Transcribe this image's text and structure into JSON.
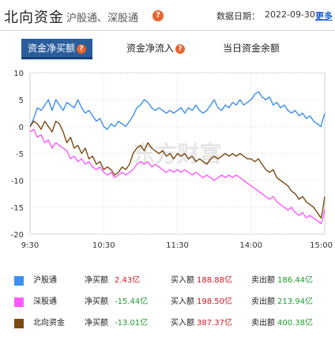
{
  "header": {
    "title": "北向资金",
    "subtitle": "沪股通、深股通",
    "help_glyph": "?",
    "date_label": "数据日期：",
    "date_value": "2022-09-30",
    "more_label": "更多"
  },
  "tabs": [
    {
      "label": "资金净买额",
      "active": true,
      "has_help": true
    },
    {
      "label": "资金净流入",
      "active": false,
      "has_help": true
    },
    {
      "label": "当日资金余额",
      "active": false,
      "has_help": false
    }
  ],
  "chart_data": {
    "type": "line",
    "title": "",
    "xlabel": "",
    "ylabel": "",
    "ylim": [
      -20,
      10
    ],
    "yticks": [
      "10",
      "5",
      "0",
      "-5",
      "-10",
      "-15",
      "-20"
    ],
    "xticks": [
      "9:30",
      "10:30",
      "11:30",
      "14:00",
      "15:00"
    ],
    "xtick_minutes": [
      0,
      60,
      120,
      180,
      240
    ],
    "watermark": "东方财富",
    "colors": {
      "沪股通": "#3d8ff0",
      "深股通": "#ff5aff",
      "北向资金": "#7a4a12"
    },
    "series": [
      {
        "name": "沪股通",
        "color": "#3d8ff0",
        "points": [
          [
            0,
            0
          ],
          [
            3,
            1.5
          ],
          [
            6,
            3.5
          ],
          [
            9,
            3
          ],
          [
            12,
            4
          ],
          [
            15,
            5
          ],
          [
            18,
            3
          ],
          [
            21,
            5
          ],
          [
            24,
            4
          ],
          [
            27,
            3
          ],
          [
            30,
            4.5
          ],
          [
            33,
            4
          ],
          [
            36,
            3.5
          ],
          [
            39,
            5
          ],
          [
            42,
            3.5
          ],
          [
            45,
            2.5
          ],
          [
            48,
            3
          ],
          [
            51,
            2
          ],
          [
            54,
            1
          ],
          [
            57,
            1.5
          ],
          [
            60,
            0
          ],
          [
            63,
            -0.5
          ],
          [
            66,
            0.5
          ],
          [
            69,
            0
          ],
          [
            72,
            1
          ],
          [
            75,
            0.5
          ],
          [
            78,
            0
          ],
          [
            81,
            1
          ],
          [
            84,
            2
          ],
          [
            87,
            3.5
          ],
          [
            90,
            4
          ],
          [
            93,
            5
          ],
          [
            96,
            4.5
          ],
          [
            99,
            3.5
          ],
          [
            102,
            3
          ],
          [
            105,
            3.5
          ],
          [
            108,
            3
          ],
          [
            111,
            2.5
          ],
          [
            114,
            3
          ],
          [
            117,
            2.5
          ],
          [
            120,
            3
          ],
          [
            123,
            3.5
          ],
          [
            126,
            2.5
          ],
          [
            129,
            3.5
          ],
          [
            132,
            3
          ],
          [
            135,
            4
          ],
          [
            138,
            3
          ],
          [
            141,
            2.5
          ],
          [
            144,
            3
          ],
          [
            147,
            4
          ],
          [
            150,
            5
          ],
          [
            153,
            3.5
          ],
          [
            156,
            3
          ],
          [
            159,
            4
          ],
          [
            162,
            3.5
          ],
          [
            165,
            4.5
          ],
          [
            168,
            4
          ],
          [
            171,
            5
          ],
          [
            174,
            4
          ],
          [
            177,
            4.5
          ],
          [
            180,
            5
          ],
          [
            183,
            6
          ],
          [
            186,
            6.5
          ],
          [
            189,
            5.5
          ],
          [
            192,
            5
          ],
          [
            195,
            5.5
          ],
          [
            198,
            4
          ],
          [
            201,
            4.5
          ],
          [
            204,
            3.5
          ],
          [
            207,
            4
          ],
          [
            210,
            3
          ],
          [
            213,
            2.5
          ],
          [
            216,
            3
          ],
          [
            219,
            2
          ],
          [
            222,
            2.5
          ],
          [
            225,
            1.5
          ],
          [
            228,
            2
          ],
          [
            231,
            1
          ],
          [
            234,
            0.5
          ],
          [
            237,
            0
          ],
          [
            238,
            1
          ],
          [
            240,
            2.43
          ]
        ]
      },
      {
        "name": "深股通",
        "color": "#ff5aff",
        "points": [
          [
            0,
            -1
          ],
          [
            3,
            -0.5
          ],
          [
            6,
            -2
          ],
          [
            9,
            -1.5
          ],
          [
            12,
            -3
          ],
          [
            15,
            -2.5
          ],
          [
            18,
            -4
          ],
          [
            21,
            -3
          ],
          [
            24,
            -3.5
          ],
          [
            27,
            -4
          ],
          [
            30,
            -4.5
          ],
          [
            33,
            -6
          ],
          [
            36,
            -5.5
          ],
          [
            39,
            -6.5
          ],
          [
            42,
            -6
          ],
          [
            45,
            -7
          ],
          [
            48,
            -6.5
          ],
          [
            51,
            -7.5
          ],
          [
            54,
            -8
          ],
          [
            57,
            -7.5
          ],
          [
            60,
            -8.5
          ],
          [
            63,
            -9
          ],
          [
            66,
            -8.5
          ],
          [
            69,
            -9.5
          ],
          [
            72,
            -9
          ],
          [
            75,
            -8.5
          ],
          [
            78,
            -9
          ],
          [
            81,
            -8.5
          ],
          [
            84,
            -8
          ],
          [
            87,
            -7
          ],
          [
            90,
            -6.5
          ],
          [
            93,
            -7
          ],
          [
            96,
            -6.5
          ],
          [
            99,
            -7.5
          ],
          [
            102,
            -7
          ],
          [
            105,
            -7.5
          ],
          [
            108,
            -8
          ],
          [
            111,
            -8.5
          ],
          [
            114,
            -8
          ],
          [
            117,
            -8.5
          ],
          [
            120,
            -8
          ],
          [
            123,
            -8.5
          ],
          [
            126,
            -8
          ],
          [
            129,
            -8.5
          ],
          [
            132,
            -9
          ],
          [
            135,
            -8.5
          ],
          [
            138,
            -9
          ],
          [
            141,
            -9.5
          ],
          [
            144,
            -9
          ],
          [
            147,
            -9.5
          ],
          [
            150,
            -10
          ],
          [
            153,
            -9.5
          ],
          [
            156,
            -9
          ],
          [
            159,
            -9.5
          ],
          [
            162,
            -9
          ],
          [
            165,
            -9.5
          ],
          [
            168,
            -9
          ],
          [
            171,
            -9.5
          ],
          [
            174,
            -10
          ],
          [
            177,
            -10.5
          ],
          [
            180,
            -11
          ],
          [
            183,
            -11.5
          ],
          [
            186,
            -12
          ],
          [
            189,
            -12.5
          ],
          [
            192,
            -13
          ],
          [
            195,
            -13.5
          ],
          [
            198,
            -13
          ],
          [
            201,
            -14
          ],
          [
            204,
            -14.5
          ],
          [
            207,
            -15
          ],
          [
            210,
            -15.5
          ],
          [
            213,
            -15
          ],
          [
            216,
            -16
          ],
          [
            219,
            -16.5
          ],
          [
            222,
            -16
          ],
          [
            225,
            -17
          ],
          [
            228,
            -16.5
          ],
          [
            231,
            -17
          ],
          [
            234,
            -17.5
          ],
          [
            237,
            -18
          ],
          [
            238,
            -17.5
          ],
          [
            240,
            -15.44
          ]
        ]
      },
      {
        "name": "北向资金",
        "color": "#7a4a12",
        "points": [
          [
            0,
            0
          ],
          [
            3,
            1
          ],
          [
            6,
            0.5
          ],
          [
            9,
            -0.5
          ],
          [
            12,
            1
          ],
          [
            15,
            0
          ],
          [
            18,
            -1
          ],
          [
            21,
            1
          ],
          [
            24,
            0.5
          ],
          [
            27,
            -1
          ],
          [
            30,
            -3
          ],
          [
            33,
            -2
          ],
          [
            36,
            -4
          ],
          [
            39,
            -3.5
          ],
          [
            42,
            -5
          ],
          [
            45,
            -4
          ],
          [
            48,
            -6
          ],
          [
            51,
            -5.5
          ],
          [
            54,
            -7
          ],
          [
            57,
            -6.5
          ],
          [
            60,
            -8
          ],
          [
            63,
            -7.5
          ],
          [
            66,
            -8
          ],
          [
            69,
            -9
          ],
          [
            72,
            -8.5
          ],
          [
            75,
            -7.5
          ],
          [
            78,
            -8
          ],
          [
            81,
            -7
          ],
          [
            84,
            -5
          ],
          [
            87,
            -4
          ],
          [
            90,
            -3.5
          ],
          [
            93,
            -4.5
          ],
          [
            96,
            -3
          ],
          [
            99,
            -4
          ],
          [
            102,
            -4.5
          ],
          [
            105,
            -5
          ],
          [
            108,
            -4.5
          ],
          [
            111,
            -5.5
          ],
          [
            114,
            -5
          ],
          [
            117,
            -6
          ],
          [
            120,
            -5
          ],
          [
            123,
            -5.5
          ],
          [
            126,
            -5
          ],
          [
            129,
            -6
          ],
          [
            132,
            -5.5
          ],
          [
            135,
            -6.5
          ],
          [
            138,
            -6
          ],
          [
            141,
            -6.5
          ],
          [
            144,
            -7
          ],
          [
            147,
            -6
          ],
          [
            150,
            -5.5
          ],
          [
            153,
            -6
          ],
          [
            156,
            -5.5
          ],
          [
            159,
            -5
          ],
          [
            162,
            -5.5
          ],
          [
            165,
            -5
          ],
          [
            168,
            -5.5
          ],
          [
            171,
            -5
          ],
          [
            174,
            -5.5
          ],
          [
            177,
            -6
          ],
          [
            180,
            -6
          ],
          [
            183,
            -6.5
          ],
          [
            186,
            -6
          ],
          [
            189,
            -7
          ],
          [
            192,
            -8
          ],
          [
            195,
            -8.5
          ],
          [
            198,
            -8
          ],
          [
            201,
            -9.5
          ],
          [
            204,
            -10
          ],
          [
            207,
            -10.5
          ],
          [
            210,
            -11
          ],
          [
            213,
            -12
          ],
          [
            216,
            -12.5
          ],
          [
            219,
            -13.5
          ],
          [
            222,
            -13
          ],
          [
            225,
            -14
          ],
          [
            228,
            -14.5
          ],
          [
            231,
            -15
          ],
          [
            234,
            -16
          ],
          [
            237,
            -17
          ],
          [
            238,
            -16
          ],
          [
            240,
            -13.01
          ]
        ]
      }
    ]
  },
  "legend": [
    {
      "name": "沪股通",
      "color": "#3d8ff0",
      "net_label": "净买额",
      "net_value": "2.43亿",
      "net_color": "#d6181e",
      "buy_label": "买入额",
      "buy_value": "188.88亿",
      "sell_label": "卖出额",
      "sell_value": "186.44亿"
    },
    {
      "name": "深股通",
      "color": "#ff5aff",
      "net_label": "净买额",
      "net_value": "-15.44亿",
      "net_color": "#1f9a2c",
      "buy_label": "买入额",
      "buy_value": "198.50亿",
      "sell_label": "卖出额",
      "sell_value": "213.94亿"
    },
    {
      "name": "北向资金",
      "color": "#7a4a12",
      "net_label": "净买额",
      "net_value": "-13.01亿",
      "net_color": "#1f9a2c",
      "buy_label": "买入额",
      "buy_value": "387.37亿",
      "sell_label": "卖出额",
      "sell_value": "400.38亿"
    }
  ]
}
